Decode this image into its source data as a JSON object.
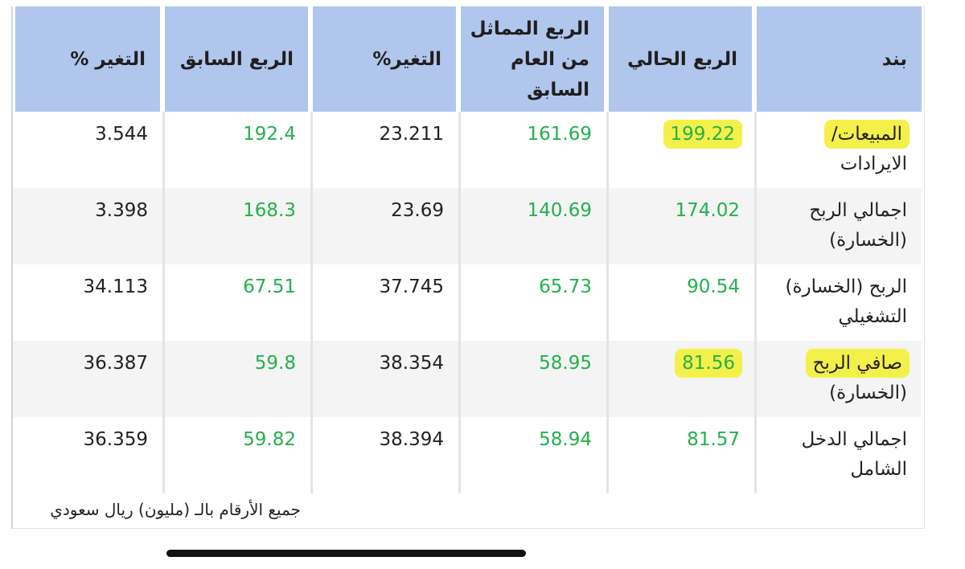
{
  "table": {
    "headers": [
      "بند",
      "الربع الحالي",
      "الربع المماثل من العام السابق",
      "التغير%",
      "الربع السابق",
      "التغير %"
    ],
    "rows": [
      {
        "item": "المبيعات/ الايرادات",
        "item_highlight": "المبيعات/",
        "item_rest": "الايرادات",
        "current": "199.22",
        "same_last_year": "161.69",
        "change_yoy": "23.211",
        "previous": "192.4",
        "change_qoq": "3.544",
        "highlight_current": true
      },
      {
        "item": "اجمالي الربح (الخسارة)",
        "current": "174.02",
        "same_last_year": "140.69",
        "change_yoy": "23.69",
        "previous": "168.3",
        "change_qoq": "3.398"
      },
      {
        "item": "الربح (الخسارة) التشغيلي",
        "current": "90.54",
        "same_last_year": "65.73",
        "change_yoy": "37.745",
        "previous": "67.51",
        "change_qoq": "34.113"
      },
      {
        "item": "صافي الربح (الخسارة)",
        "item_highlight": "صافي الربح",
        "item_rest": "(الخسارة)",
        "current": "81.56",
        "same_last_year": "58.95",
        "change_yoy": "38.354",
        "previous": "59.8",
        "change_qoq": "36.387",
        "highlight_current": true
      },
      {
        "item": "اجمالي الدخل الشامل",
        "current": "81.57",
        "same_last_year": "58.94",
        "change_yoy": "38.394",
        "previous": "59.82",
        "change_qoq": "36.359"
      }
    ]
  },
  "footnote": "جميع الأرقام بالـ (مليون) ريال سعودي",
  "colors": {
    "header_bg": "#b1c6ec",
    "green_value": "#22b14c",
    "highlight": "#f4f04a",
    "row_shade": "#f4f4f4"
  }
}
